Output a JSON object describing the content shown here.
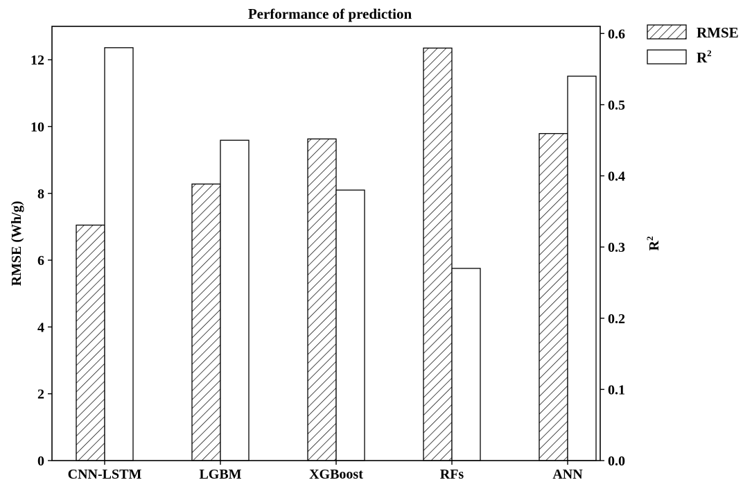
{
  "chart_data": {
    "type": "bar",
    "title": "Performance of prediction",
    "categories": [
      "CNN-LSTM",
      "LGBM",
      "XGBoost",
      "RFs",
      "ANN"
    ],
    "series": [
      {
        "name": "RMSE",
        "axis": "left",
        "pattern": "hatched",
        "values": [
          7.05,
          8.28,
          9.63,
          12.35,
          9.79
        ]
      },
      {
        "name": "R",
        "name_superscript": "2",
        "axis": "right",
        "pattern": "open",
        "values": [
          0.58,
          0.45,
          0.38,
          0.27,
          0.54
        ]
      }
    ],
    "ylabel": "RMSE (Wh/g)",
    "ylim": [
      0,
      13
    ],
    "yticks": [
      "0",
      "2",
      "4",
      "6",
      "8",
      "10",
      "12"
    ],
    "y2label": "R",
    "y2label_superscript": "2",
    "y2lim": [
      0,
      0.61
    ],
    "y2ticks": [
      "0.0",
      "0.1",
      "0.2",
      "0.3",
      "0.4",
      "0.5",
      "0.6"
    ],
    "legend_position": "outside-top-right",
    "grid": false
  }
}
